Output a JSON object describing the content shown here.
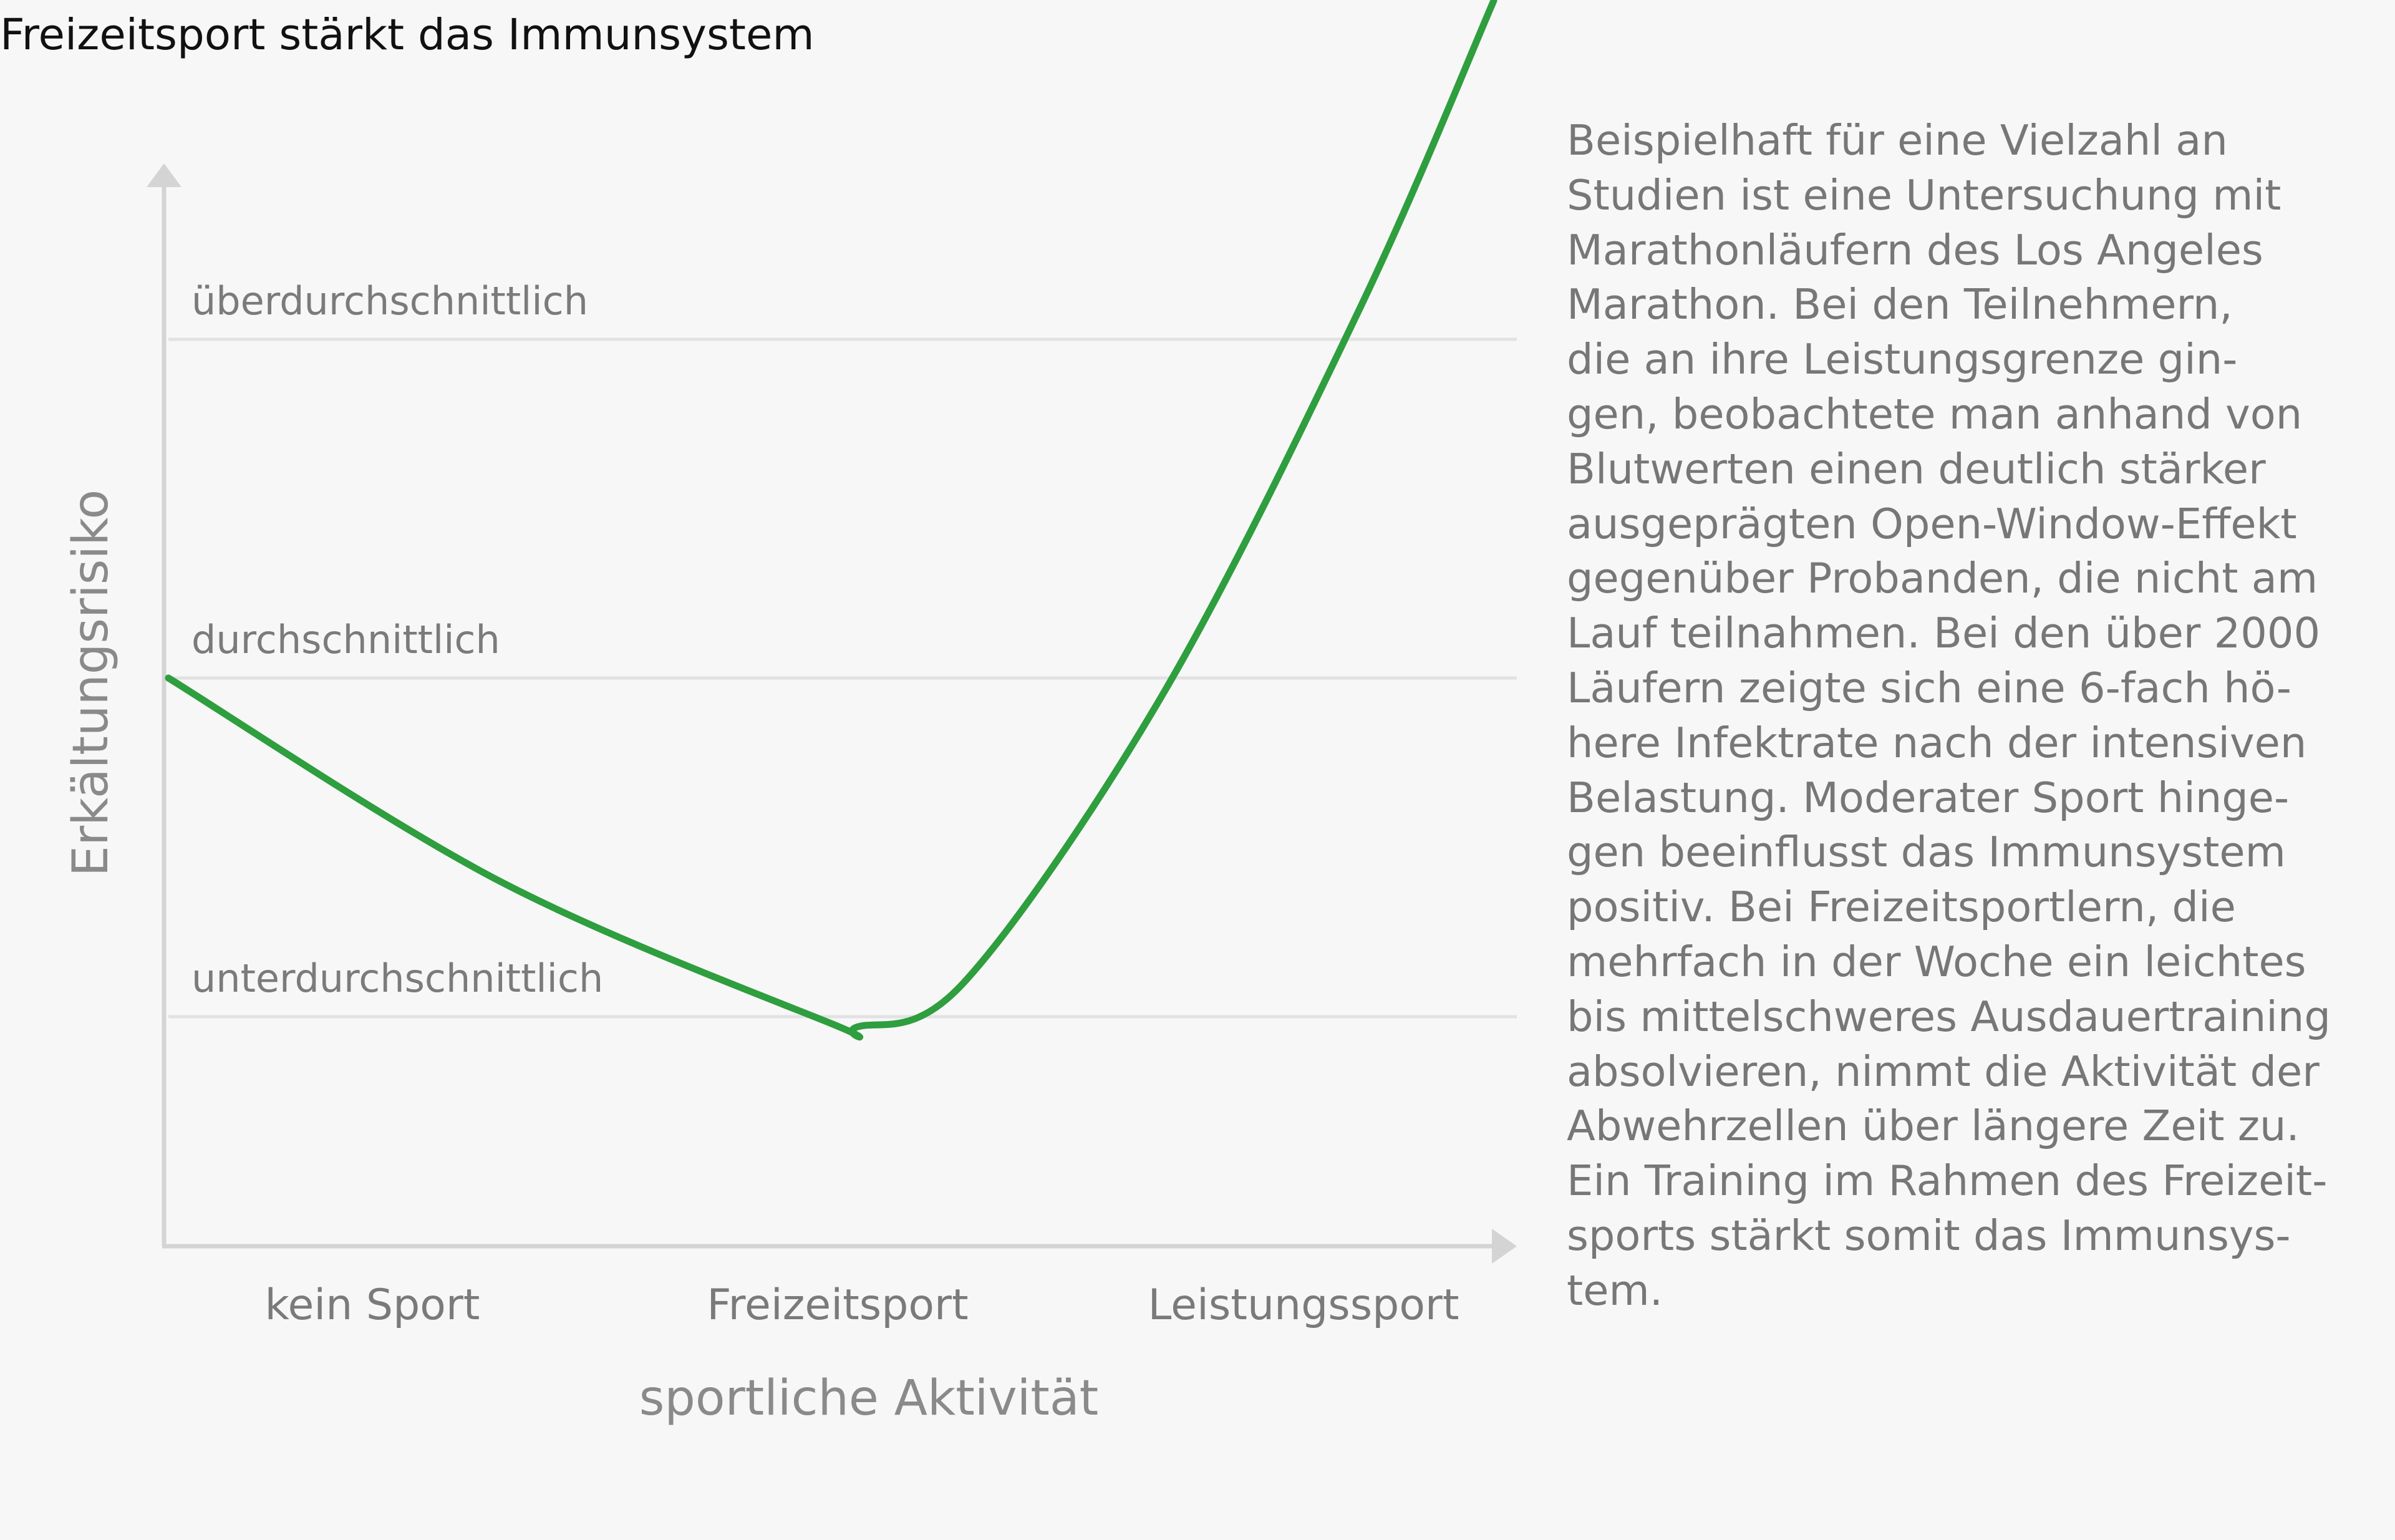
{
  "chart_data": {
    "type": "line",
    "title": "Freizeitsport stärkt das Immunsystem",
    "xlabel": "sportliche Aktivität",
    "ylabel": "Erkältungsrisiko",
    "x_categories": [
      "kein Sport",
      "Freizeitsport",
      "Leistungssport"
    ],
    "y_levels": [
      "unterdurchschnittlich",
      "durchschnittlich",
      "überdurchschnittlich"
    ],
    "grid": true,
    "legend": "none",
    "colors": {
      "line": "#2e9e3e",
      "grid": "#e2e2e2",
      "axis": "#d4d4d4"
    },
    "series": [
      {
        "x": [
          0,
          0.25,
          0.5,
          0.52,
          0.6,
          0.75,
          0.9,
          1.0
        ],
        "y": [
          1.0,
          0.4,
          -0.02,
          -0.03,
          0.1,
          0.95,
          2.1,
          3.0
        ]
      }
    ]
  },
  "side_text": "Beispielhaft für eine Vielzahl an\nStudien ist eine Untersuchung mit\nMarathonläufern des Los Angeles\nMarathon. Bei den Teilnehmern,\ndie an ihre Leistungsgrenze gin-\ngen, beobachtete man anhand von\nBlutwerten einen deutlich stärker\nausgeprägten Open-Window-Effekt\ngegenüber Probanden, die nicht am\nLauf teilnahmen. Bei den über 2000\nLäufern zeigte sich eine 6-fach hö-\nhere Infektrate nach der intensiven\nBelastung. Moderater Sport hinge-\ngen beeinflusst das Immunsystem\npositiv. Bei Freizeitsportlern, die\nmehrfach in der Woche ein leichtes\nbis mittelschweres Ausdauertraining\nabsolvieren, nimmt die Aktivität der\nAbwehrzellen über längere Zeit zu.\nEin Training im Rahmen des Freizeit-\nsports stärkt somit das Immunsys-\ntem."
}
